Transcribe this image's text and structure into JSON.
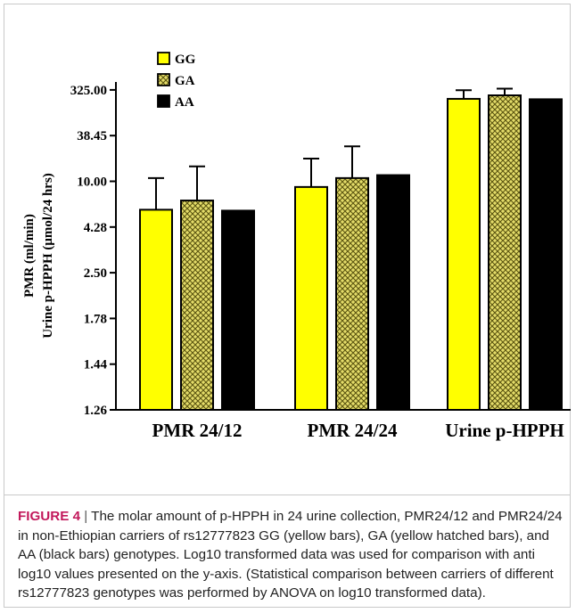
{
  "chart_data": {
    "type": "bar",
    "title": "",
    "xlabel": "",
    "ylabel_lines": [
      "PMR (ml/min)",
      "Urine p-HPPH (μmol/24 hrs)"
    ],
    "y_tick_labels": [
      "1.26",
      "1.44",
      "1.78",
      "2.50",
      "4.28",
      "10.00",
      "38.45",
      "325.00"
    ],
    "categories": [
      "PMR 24/12",
      "PMR 24/24",
      "Urine p-HPPH"
    ],
    "series": [
      {
        "name": "GG",
        "pattern": "solid",
        "color": "#ffff00",
        "values": [
          5.9,
          9.0,
          214
        ],
        "errors": [
          11.0,
          19.5,
          320
        ]
      },
      {
        "name": "GA",
        "pattern": "crosshatch",
        "color": "#d4c94a",
        "values": [
          7.0,
          11.0,
          252
        ],
        "errors": [
          15.5,
          28.0,
          345
        ]
      },
      {
        "name": "AA",
        "pattern": "solid",
        "color": "#000000",
        "values": [
          5.8,
          12.0,
          210
        ],
        "errors": [
          null,
          null,
          null
        ]
      }
    ],
    "legend_position": "top-left",
    "grid": false
  },
  "caption": {
    "label": "FIGURE 4",
    "separator": " | ",
    "text": "The molar amount of p-HPPH in 24 urine collection, PMR24/12 and PMR24/24 in non-Ethiopian carriers of rs12777823 GG (yellow bars), GA (yellow hatched bars), and AA (black bars) genotypes. Log10 transformed data was used for comparison with anti log10 values presented on the y-axis. (Statistical comparison between carriers of different rs12777823 genotypes was performed by ANOVA on log10 transformed data)."
  }
}
